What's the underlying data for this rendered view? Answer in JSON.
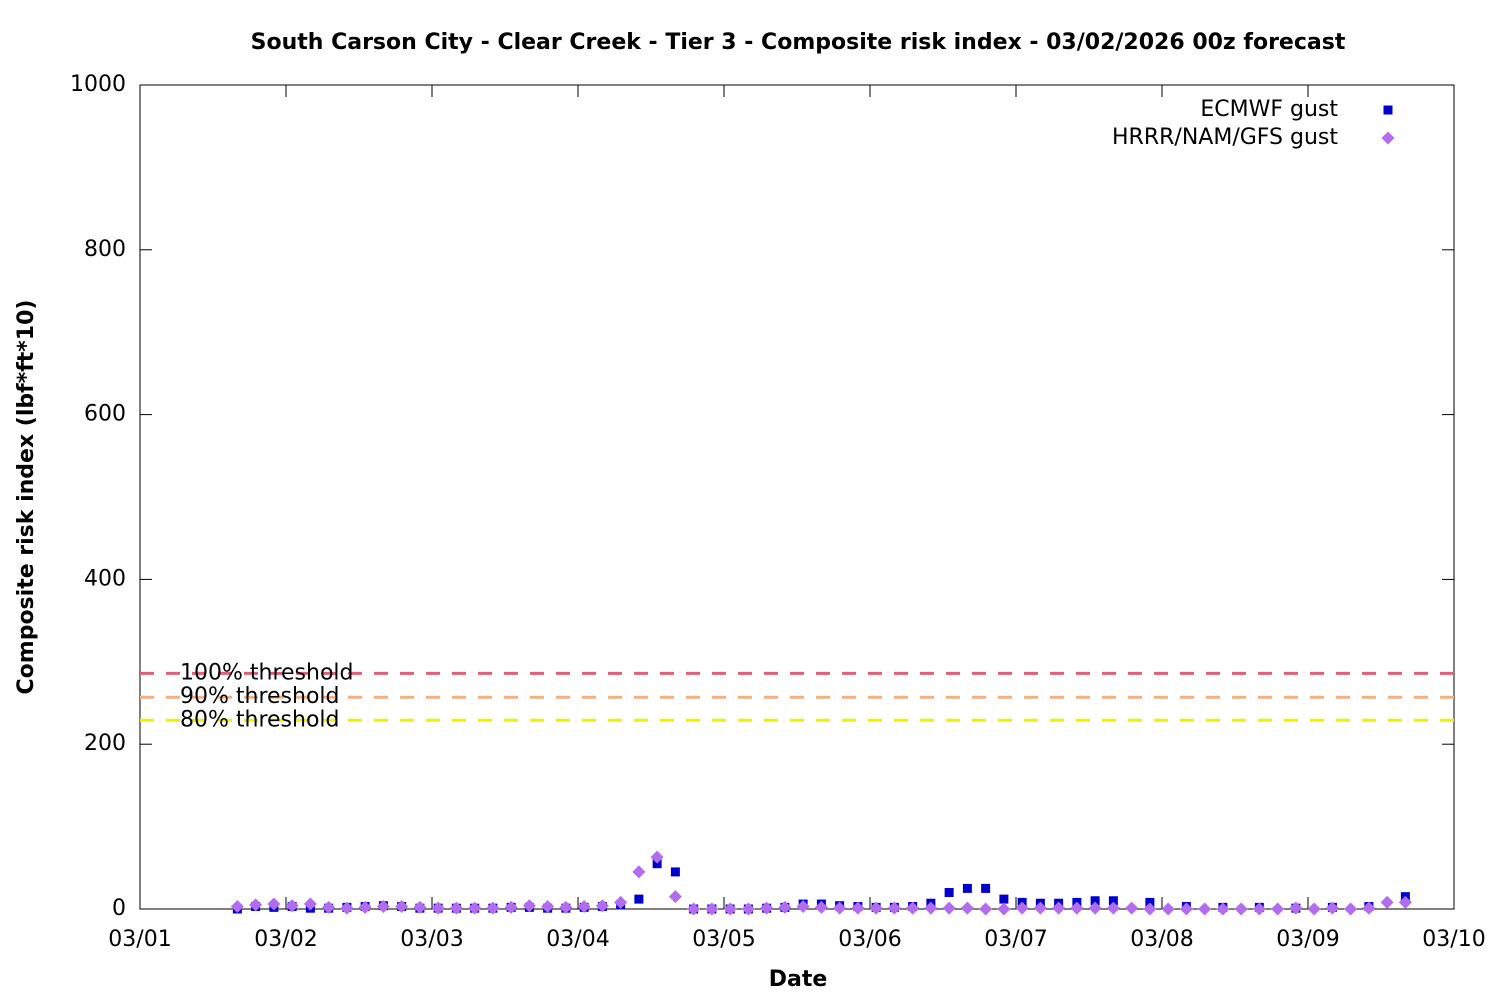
{
  "chart_data": {
    "type": "scatter",
    "title": "South Carson City - Clear Creek - Tier 3 - Composite risk index - 03/02/2026 00z forecast",
    "x_label": "Date",
    "y_label": "Composite risk index (lbf*ft*10)",
    "xlim": [
      0,
      9
    ],
    "xticks": [
      {
        "value": 0,
        "label": "03/01"
      },
      {
        "value": 1,
        "label": "03/02"
      },
      {
        "value": 2,
        "label": "03/03"
      },
      {
        "value": 3,
        "label": "03/04"
      },
      {
        "value": 4,
        "label": "03/05"
      },
      {
        "value": 5,
        "label": "03/06"
      },
      {
        "value": 6,
        "label": "03/07"
      },
      {
        "value": 7,
        "label": "03/08"
      },
      {
        "value": 8,
        "label": "03/09"
      },
      {
        "value": 9,
        "label": "03/10"
      }
    ],
    "ylim": [
      0,
      1000
    ],
    "yticks": [
      0,
      200,
      400,
      600,
      800,
      1000
    ],
    "legend": "top-right",
    "thresholds": [
      {
        "label": "100% threshold",
        "value": 286,
        "color": "#e0607a"
      },
      {
        "label": "90% threshold",
        "value": 257,
        "color": "#f4b080"
      },
      {
        "label": "80% threshold",
        "value": 229,
        "color": "#f0f000"
      }
    ],
    "series": [
      {
        "name": "ECMWF gust",
        "color": "#0000cc",
        "marker": "square",
        "x": [
          0.667,
          0.792,
          0.917,
          1.042,
          1.167,
          1.292,
          1.417,
          1.542,
          1.667,
          1.792,
          1.917,
          2.042,
          2.167,
          2.292,
          2.417,
          2.542,
          2.667,
          2.792,
          2.917,
          3.042,
          3.167,
          3.292,
          3.417,
          3.542,
          3.667,
          3.792,
          3.917,
          4.042,
          4.167,
          4.292,
          4.417,
          4.542,
          4.667,
          4.792,
          4.917,
          5.042,
          5.167,
          5.292,
          5.417,
          5.542,
          5.667,
          5.792,
          5.917,
          6.042,
          6.167,
          6.292,
          6.417,
          6.542,
          6.667,
          6.917,
          7.167,
          7.417,
          7.667,
          7.917,
          8.167,
          8.417,
          8.667
        ],
        "values": [
          0,
          3,
          2,
          3,
          1,
          1,
          2,
          3,
          4,
          3,
          1,
          1,
          1,
          1,
          1,
          2,
          2,
          1,
          1,
          2,
          3,
          5,
          12,
          55,
          45,
          0,
          0,
          0,
          0,
          1,
          2,
          6,
          6,
          4,
          3,
          2,
          2,
          3,
          7,
          20,
          25,
          25,
          12,
          8,
          7,
          7,
          8,
          10,
          10,
          8,
          3,
          2,
          2,
          1,
          2,
          3,
          15
        ]
      },
      {
        "name": "HRRR/NAM/GFS gust",
        "color": "#b36bf0",
        "marker": "diamond",
        "x": [
          0.667,
          0.792,
          0.917,
          1.042,
          1.167,
          1.292,
          1.417,
          1.542,
          1.667,
          1.792,
          1.917,
          2.042,
          2.167,
          2.292,
          2.417,
          2.542,
          2.667,
          2.792,
          2.917,
          3.042,
          3.167,
          3.292,
          3.417,
          3.542,
          3.667,
          3.792,
          3.917,
          4.042,
          4.167,
          4.292,
          4.417,
          4.542,
          4.667,
          4.792,
          4.917,
          5.042,
          5.167,
          5.292,
          5.417,
          5.542,
          5.667,
          5.792,
          5.917,
          6.042,
          6.167,
          6.292,
          6.417,
          6.542,
          6.667,
          6.792,
          6.917,
          7.042,
          7.167,
          7.292,
          7.417,
          7.542,
          7.667,
          7.792,
          7.917,
          8.042,
          8.167,
          8.292,
          8.417,
          8.542,
          8.667
        ],
        "values": [
          3,
          5,
          6,
          4,
          6,
          2,
          1,
          2,
          3,
          3,
          2,
          1,
          1,
          1,
          1,
          2,
          4,
          3,
          2,
          3,
          4,
          8,
          45,
          63,
          15,
          0,
          0,
          0,
          0,
          1,
          2,
          3,
          2,
          1,
          1,
          1,
          1,
          1,
          1,
          1,
          1,
          0,
          0,
          1,
          1,
          1,
          1,
          1,
          1,
          1,
          0,
          0,
          0,
          0,
          0,
          0,
          0,
          0,
          1,
          0,
          1,
          0,
          1,
          8,
          8
        ]
      }
    ]
  }
}
